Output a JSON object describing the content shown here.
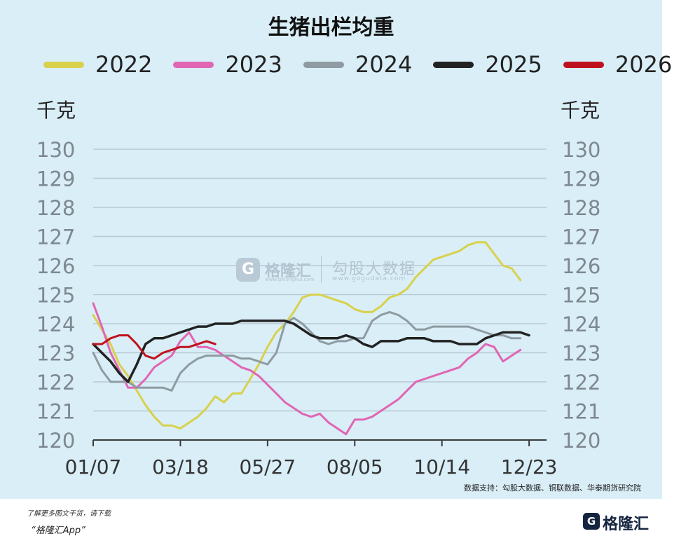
{
  "chart_data": {
    "type": "line",
    "title": "生猪出栏均重",
    "ylabel_left": "千克",
    "ylabel_right": "千克",
    "ylim": [
      120,
      130
    ],
    "yticks": [
      120,
      121,
      122,
      123,
      124,
      125,
      126,
      127,
      128,
      129,
      130
    ],
    "xlim": [
      0,
      52
    ],
    "xaxis_unit": "week",
    "xticks": [
      {
        "week": 0,
        "label": "01/07"
      },
      {
        "week": 10,
        "label": "03/18"
      },
      {
        "week": 20,
        "label": "05/27"
      },
      {
        "week": 30,
        "label": "08/05"
      },
      {
        "week": 40,
        "label": "10/14"
      },
      {
        "week": 50,
        "label": "12/23"
      }
    ],
    "series": [
      {
        "name": "2022",
        "color": "#d8d14c",
        "points": [
          [
            0,
            124.3
          ],
          [
            2,
            123.3
          ],
          [
            3,
            122.6
          ],
          [
            4,
            122.2
          ],
          [
            5,
            121.7
          ],
          [
            6,
            121.2
          ],
          [
            7,
            120.8
          ],
          [
            8,
            120.5
          ],
          [
            9,
            120.5
          ],
          [
            10,
            120.4
          ],
          [
            11,
            120.6
          ],
          [
            12,
            120.8
          ],
          [
            13,
            121.1
          ],
          [
            14,
            121.5
          ],
          [
            15,
            121.3
          ],
          [
            16,
            121.6
          ],
          [
            17,
            121.6
          ],
          [
            18,
            122.1
          ],
          [
            19,
            122.6
          ],
          [
            20,
            123.2
          ],
          [
            21,
            123.7
          ],
          [
            22,
            124.0
          ],
          [
            23,
            124.4
          ],
          [
            24,
            124.9
          ],
          [
            25,
            125.0
          ],
          [
            26,
            125.0
          ],
          [
            27,
            124.9
          ],
          [
            28,
            124.8
          ],
          [
            29,
            124.7
          ],
          [
            30,
            124.5
          ],
          [
            31,
            124.4
          ],
          [
            32,
            124.4
          ],
          [
            33,
            124.6
          ],
          [
            34,
            124.9
          ],
          [
            35,
            125.0
          ],
          [
            36,
            125.2
          ],
          [
            37,
            125.6
          ],
          [
            38,
            125.9
          ],
          [
            39,
            126.2
          ],
          [
            40,
            126.3
          ],
          [
            41,
            126.4
          ],
          [
            42,
            126.5
          ],
          [
            43,
            126.7
          ],
          [
            44,
            126.8
          ],
          [
            45,
            126.8
          ],
          [
            46,
            126.4
          ],
          [
            47,
            126.0
          ],
          [
            48,
            125.9
          ],
          [
            49,
            125.5
          ]
        ]
      },
      {
        "name": "2023",
        "color": "#e066b3",
        "points": [
          [
            0,
            124.7
          ],
          [
            1,
            123.9
          ],
          [
            2,
            123.0
          ],
          [
            3,
            122.4
          ],
          [
            4,
            121.8
          ],
          [
            5,
            121.8
          ],
          [
            6,
            122.1
          ],
          [
            7,
            122.5
          ],
          [
            8,
            122.7
          ],
          [
            9,
            122.9
          ],
          [
            10,
            123.4
          ],
          [
            11,
            123.7
          ],
          [
            12,
            123.2
          ],
          [
            13,
            123.2
          ],
          [
            14,
            123.1
          ],
          [
            15,
            122.9
          ],
          [
            16,
            122.7
          ],
          [
            17,
            122.5
          ],
          [
            18,
            122.4
          ],
          [
            19,
            122.2
          ],
          [
            20,
            121.9
          ],
          [
            21,
            121.6
          ],
          [
            22,
            121.3
          ],
          [
            23,
            121.1
          ],
          [
            24,
            120.9
          ],
          [
            25,
            120.8
          ],
          [
            26,
            120.9
          ],
          [
            27,
            120.6
          ],
          [
            28,
            120.4
          ],
          [
            29,
            120.2
          ],
          [
            30,
            120.7
          ],
          [
            31,
            120.7
          ],
          [
            32,
            120.8
          ],
          [
            33,
            121.0
          ],
          [
            34,
            121.2
          ],
          [
            35,
            121.4
          ],
          [
            36,
            121.7
          ],
          [
            37,
            122.0
          ],
          [
            38,
            122.1
          ],
          [
            39,
            122.2
          ],
          [
            40,
            122.3
          ],
          [
            41,
            122.4
          ],
          [
            42,
            122.5
          ],
          [
            43,
            122.8
          ],
          [
            44,
            123.0
          ],
          [
            45,
            123.3
          ],
          [
            46,
            123.2
          ],
          [
            47,
            122.7
          ],
          [
            48,
            122.9
          ],
          [
            49,
            123.1
          ]
        ]
      },
      {
        "name": "2024",
        "color": "#8f9ba2",
        "points": [
          [
            0,
            123.0
          ],
          [
            1,
            122.4
          ],
          [
            2,
            122.0
          ],
          [
            3,
            122.0
          ],
          [
            4,
            122.0
          ],
          [
            5,
            121.8
          ],
          [
            6,
            121.8
          ],
          [
            7,
            121.8
          ],
          [
            8,
            121.8
          ],
          [
            9,
            121.7
          ],
          [
            10,
            122.3
          ],
          [
            11,
            122.6
          ],
          [
            12,
            122.8
          ],
          [
            13,
            122.9
          ],
          [
            14,
            122.9
          ],
          [
            15,
            122.9
          ],
          [
            16,
            122.9
          ],
          [
            17,
            122.8
          ],
          [
            18,
            122.8
          ],
          [
            19,
            122.7
          ],
          [
            20,
            122.6
          ],
          [
            21,
            123.0
          ],
          [
            22,
            124.0
          ],
          [
            23,
            124.2
          ],
          [
            24,
            124.0
          ],
          [
            25,
            123.7
          ],
          [
            26,
            123.4
          ],
          [
            27,
            123.3
          ],
          [
            28,
            123.4
          ],
          [
            29,
            123.4
          ],
          [
            30,
            123.5
          ],
          [
            31,
            123.5
          ],
          [
            32,
            124.1
          ],
          [
            33,
            124.3
          ],
          [
            34,
            124.4
          ],
          [
            35,
            124.3
          ],
          [
            36,
            124.1
          ],
          [
            37,
            123.8
          ],
          [
            38,
            123.8
          ],
          [
            39,
            123.9
          ],
          [
            40,
            123.9
          ],
          [
            41,
            123.9
          ],
          [
            42,
            123.9
          ],
          [
            43,
            123.9
          ],
          [
            44,
            123.8
          ],
          [
            45,
            123.7
          ],
          [
            46,
            123.6
          ],
          [
            47,
            123.6
          ],
          [
            48,
            123.5
          ],
          [
            49,
            123.5
          ]
        ]
      },
      {
        "name": "2025",
        "color": "#222222",
        "points": [
          [
            0,
            123.3
          ],
          [
            1,
            123.0
          ],
          [
            2,
            122.7
          ],
          [
            3,
            122.3
          ],
          [
            4,
            122.0
          ],
          [
            5,
            122.6
          ],
          [
            6,
            123.3
          ],
          [
            7,
            123.5
          ],
          [
            8,
            123.5
          ],
          [
            9,
            123.6
          ],
          [
            10,
            123.7
          ],
          [
            11,
            123.8
          ],
          [
            12,
            123.9
          ],
          [
            13,
            123.9
          ],
          [
            14,
            124.0
          ],
          [
            15,
            124.0
          ],
          [
            16,
            124.0
          ],
          [
            17,
            124.1
          ],
          [
            18,
            124.1
          ],
          [
            19,
            124.1
          ],
          [
            20,
            124.1
          ],
          [
            21,
            124.1
          ],
          [
            22,
            124.1
          ],
          [
            23,
            124.0
          ],
          [
            24,
            123.8
          ],
          [
            25,
            123.6
          ],
          [
            26,
            123.5
          ],
          [
            27,
            123.5
          ],
          [
            28,
            123.5
          ],
          [
            29,
            123.6
          ],
          [
            30,
            123.5
          ],
          [
            31,
            123.3
          ],
          [
            32,
            123.2
          ],
          [
            33,
            123.4
          ],
          [
            34,
            123.4
          ],
          [
            35,
            123.4
          ],
          [
            36,
            123.5
          ],
          [
            37,
            123.5
          ],
          [
            38,
            123.5
          ],
          [
            39,
            123.4
          ],
          [
            40,
            123.4
          ],
          [
            41,
            123.4
          ],
          [
            42,
            123.3
          ],
          [
            43,
            123.3
          ],
          [
            44,
            123.3
          ],
          [
            45,
            123.5
          ],
          [
            46,
            123.6
          ],
          [
            47,
            123.7
          ],
          [
            48,
            123.7
          ],
          [
            49,
            123.7
          ],
          [
            50,
            123.6
          ]
        ]
      },
      {
        "name": "2026",
        "color": "#c0121e",
        "points": [
          [
            0,
            123.3
          ],
          [
            1,
            123.3
          ],
          [
            2,
            123.5
          ],
          [
            3,
            123.6
          ],
          [
            4,
            123.6
          ],
          [
            5,
            123.3
          ],
          [
            6,
            122.9
          ],
          [
            7,
            122.8
          ],
          [
            8,
            123.0
          ],
          [
            9,
            123.1
          ],
          [
            10,
            123.2
          ],
          [
            11,
            123.2
          ],
          [
            12,
            123.3
          ],
          [
            13,
            123.4
          ],
          [
            14,
            123.3
          ]
        ]
      }
    ],
    "legend_position": "top",
    "grid": true
  },
  "source_note": "数据支持：勾股大数据、铜联数据、华泰期货研究院",
  "watermark": {
    "badge": "G",
    "name": "格隆汇",
    "url": "www.gelonghui.com",
    "sub_name": "勾股大数据",
    "sub_url": "www.gogudata.com"
  },
  "footer": {
    "line1": "了解更多图文干货，请下载",
    "line2": "“格隆汇App”",
    "logo_badge": "G",
    "logo_text": "格隆汇"
  }
}
